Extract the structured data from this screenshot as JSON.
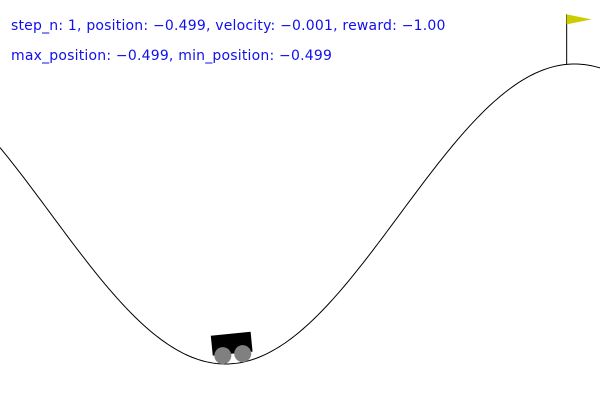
{
  "hud": {
    "line1": "step_n: 1, position: −0.499, velocity: −0.001, reward: −1.00",
    "line2": "max_position: −0.499, min_position: −0.499"
  },
  "state": {
    "step_n": 1,
    "position": -0.499,
    "velocity": -0.001,
    "reward": -1.0,
    "max_position": -0.499,
    "min_position": -0.499,
    "goal_position": 0.5,
    "world_min_x": -1.2,
    "world_max_x": 0.6
  },
  "colors": {
    "background": "#ffffff",
    "hud_text": "#1010ee",
    "track": "#000000",
    "car_body": "#000000",
    "wheel": "#808080",
    "flag": "#cccc00",
    "flagpole": "#000000"
  },
  "icons": {
    "car": "car-icon",
    "flag": "flag-icon"
  }
}
